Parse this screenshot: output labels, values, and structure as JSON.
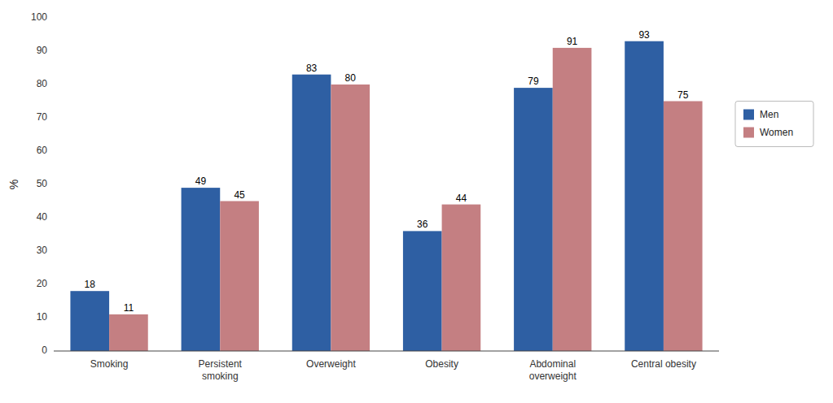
{
  "chart_data": {
    "type": "bar",
    "categories": [
      "Smoking",
      "Persistent\nsmoking",
      "Overweight",
      "Obesity",
      "Abdominal\noverweight",
      "Central obesity"
    ],
    "series": [
      {
        "name": "Men",
        "color": "#2E5FA3",
        "values": [
          18,
          49,
          83,
          36,
          79,
          93
        ]
      },
      {
        "name": "Women",
        "color": "#C47F82",
        "values": [
          11,
          45,
          80,
          44,
          91,
          75
        ]
      }
    ],
    "ylabel": "%",
    "ylim": [
      0,
      100
    ],
    "yticks": [
      0,
      10,
      20,
      30,
      40,
      50,
      60,
      70,
      80,
      90,
      100
    ],
    "grid": false,
    "legend": "right",
    "data_labels": true
  }
}
